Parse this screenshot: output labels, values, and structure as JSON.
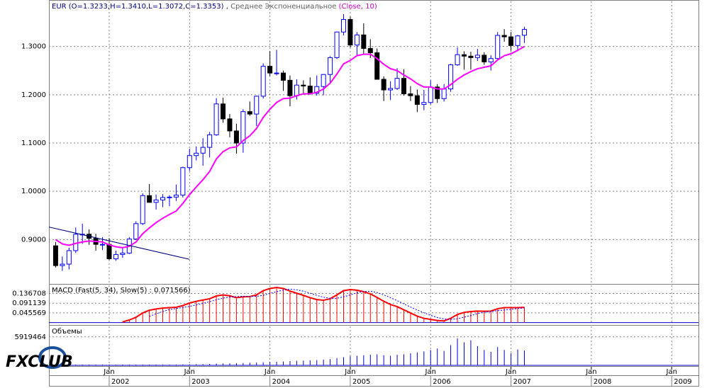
{
  "chart_data": [
    {
      "type": "candlestick",
      "title": "EUR (O=1.3233,H=1.3410,L=1.3072,C=1.3353) ,",
      "indicator_label": "Среднее Экспоненциальное",
      "indicator_params": "(Close, 10)",
      "logo": "FXCLUB",
      "x": [
        "2001-05",
        "2001-06",
        "2001-07",
        "2001-08",
        "2001-09",
        "2001-10",
        "2001-11",
        "2001-12",
        "2002-01",
        "2002-02",
        "2002-03",
        "2002-04",
        "2002-05",
        "2002-06",
        "2002-07",
        "2002-08",
        "2002-09",
        "2002-10",
        "2002-11",
        "2002-12",
        "2003-01",
        "2003-02",
        "2003-03",
        "2003-04",
        "2003-05",
        "2003-06",
        "2003-07",
        "2003-08",
        "2003-09",
        "2003-10",
        "2003-11",
        "2003-12",
        "2004-01",
        "2004-02",
        "2004-03",
        "2004-04",
        "2004-05",
        "2004-06",
        "2004-07",
        "2004-08",
        "2004-09",
        "2004-10",
        "2004-11",
        "2004-12",
        "2005-01",
        "2005-02",
        "2005-03",
        "2005-04",
        "2005-05",
        "2005-06",
        "2005-07",
        "2005-08",
        "2005-09",
        "2005-10",
        "2005-11",
        "2005-12",
        "2006-01",
        "2006-02",
        "2006-03",
        "2006-04",
        "2006-05",
        "2006-06",
        "2006-07",
        "2006-08",
        "2006-09",
        "2006-10",
        "2006-11",
        "2006-12",
        "2007-01",
        "2007-02",
        "2007-03"
      ],
      "open": [
        0.887,
        0.846,
        0.849,
        0.877,
        0.911,
        0.911,
        0.9025,
        0.89,
        0.89,
        0.86,
        0.869,
        0.872,
        0.901,
        0.933,
        0.991,
        0.977,
        0.982,
        0.987,
        0.988,
        0.992,
        1.049,
        1.074,
        1.079,
        1.091,
        1.117,
        1.181,
        1.15,
        1.125,
        1.1,
        1.165,
        1.16,
        1.197,
        1.259,
        1.245,
        1.245,
        1.23,
        1.198,
        1.22,
        1.218,
        1.203,
        1.217,
        1.242,
        1.277,
        1.33,
        1.356,
        1.303,
        1.324,
        1.296,
        1.287,
        1.232,
        1.21,
        1.213,
        1.234,
        1.202,
        1.198,
        1.18,
        1.184,
        1.216,
        1.192,
        1.212,
        1.262,
        1.283,
        1.28,
        1.277,
        1.282,
        1.268,
        1.275,
        1.323,
        1.32,
        1.302,
        1.3233
      ],
      "high": [
        0.895,
        0.865,
        0.883,
        0.925,
        0.933,
        0.921,
        0.912,
        0.905,
        0.903,
        0.877,
        0.884,
        0.905,
        0.938,
        0.996,
        1.015,
        0.993,
        0.994,
        0.992,
        1.014,
        1.051,
        1.088,
        1.093,
        1.11,
        1.123,
        1.193,
        1.194,
        1.16,
        1.14,
        1.17,
        1.186,
        1.198,
        1.265,
        1.29,
        1.293,
        1.25,
        1.24,
        1.232,
        1.23,
        1.236,
        1.24,
        1.243,
        1.28,
        1.331,
        1.367,
        1.362,
        1.33,
        1.348,
        1.315,
        1.296,
        1.238,
        1.228,
        1.255,
        1.253,
        1.218,
        1.211,
        1.21,
        1.23,
        1.222,
        1.222,
        1.264,
        1.298,
        1.29,
        1.289,
        1.295,
        1.288,
        1.282,
        1.33,
        1.336,
        1.33,
        1.324,
        1.341
      ],
      "low": [
        0.842,
        0.835,
        0.838,
        0.872,
        0.891,
        0.889,
        0.877,
        0.878,
        0.858,
        0.856,
        0.862,
        0.87,
        0.899,
        0.93,
        0.977,
        0.962,
        0.967,
        0.969,
        0.98,
        0.987,
        1.042,
        1.064,
        1.053,
        1.07,
        1.115,
        1.142,
        1.112,
        1.078,
        1.08,
        1.156,
        1.135,
        1.192,
        1.239,
        1.24,
        1.208,
        1.176,
        1.19,
        1.2,
        1.2,
        1.198,
        1.199,
        1.224,
        1.274,
        1.323,
        1.298,
        1.282,
        1.283,
        1.276,
        1.232,
        1.187,
        1.189,
        1.21,
        1.198,
        1.187,
        1.164,
        1.168,
        1.18,
        1.183,
        1.186,
        1.206,
        1.26,
        1.252,
        1.252,
        1.27,
        1.262,
        1.25,
        1.271,
        1.31,
        1.291,
        1.29,
        1.3072
      ],
      "close": [
        0.846,
        0.849,
        0.877,
        0.911,
        0.911,
        0.9025,
        0.89,
        0.89,
        0.86,
        0.869,
        0.872,
        0.901,
        0.933,
        0.991,
        0.977,
        0.982,
        0.987,
        0.988,
        0.992,
        1.049,
        1.074,
        1.079,
        1.091,
        1.117,
        1.181,
        1.15,
        1.125,
        1.1,
        1.165,
        1.16,
        1.197,
        1.259,
        1.245,
        1.245,
        1.23,
        1.198,
        1.22,
        1.218,
        1.203,
        1.217,
        1.242,
        1.277,
        1.33,
        1.356,
        1.303,
        1.324,
        1.296,
        1.287,
        1.232,
        1.21,
        1.213,
        1.234,
        1.202,
        1.198,
        1.18,
        1.184,
        1.216,
        1.192,
        1.212,
        1.262,
        1.283,
        1.28,
        1.277,
        1.282,
        1.268,
        1.275,
        1.323,
        1.32,
        1.302,
        1.322,
        1.3353
      ],
      "up_color": "#0000ff",
      "down_color": "#000000",
      "overlay": {
        "color": "#ff00ff",
        "values": [
          0.9,
          0.891,
          0.888,
          0.892,
          0.895,
          0.897,
          0.896,
          0.895,
          0.889,
          0.885,
          0.883,
          0.886,
          0.895,
          0.912,
          0.924,
          0.935,
          0.944,
          0.952,
          0.959,
          0.975,
          0.993,
          1.009,
          1.024,
          1.041,
          1.067,
          1.082,
          1.09,
          1.092,
          1.105,
          1.115,
          1.13,
          1.153,
          1.17,
          1.184,
          1.192,
          1.193,
          1.198,
          1.202,
          1.202,
          1.205,
          1.212,
          1.224,
          1.243,
          1.264,
          1.271,
          1.281,
          1.284,
          1.284,
          1.275,
          1.263,
          1.254,
          1.25,
          1.241,
          1.233,
          1.223,
          1.216,
          1.216,
          1.212,
          1.212,
          1.221,
          1.232,
          1.241,
          1.248,
          1.254,
          1.257,
          1.26,
          1.272,
          1.281,
          1.285,
          1.292,
          1.3
        ]
      },
      "trendline": {
        "color": "#000080",
        "x": [
          "2001-04",
          "2003-01"
        ],
        "values": [
          0.926,
          0.859
        ]
      },
      "xlim": [
        "2001-04",
        "2009-05"
      ],
      "xticks": [
        {
          "value": "2002-01",
          "label": "Jan"
        },
        {
          "value": "2003-01",
          "label": "Jan"
        },
        {
          "value": "2004-01",
          "label": "Jan"
        },
        {
          "value": "2005-01",
          "label": "Jan"
        },
        {
          "value": "2006-01",
          "label": "Jan"
        },
        {
          "value": "2007-01",
          "label": "Jan"
        },
        {
          "value": "2008-01",
          "label": "Jan"
        },
        {
          "value": "2009-01",
          "label": "Jan"
        }
      ],
      "year_labels": [
        {
          "value": "2002-01",
          "label": "2002"
        },
        {
          "value": "2003-01",
          "label": "2003"
        },
        {
          "value": "2004-01",
          "label": "2004"
        },
        {
          "value": "2005-01",
          "label": "2005"
        },
        {
          "value": "2006-01",
          "label": "2006"
        },
        {
          "value": "2007-01",
          "label": "2007"
        },
        {
          "value": "2008-01",
          "label": "2008"
        },
        {
          "value": "2009-01",
          "label": "2009"
        }
      ],
      "ylim": [
        0.8095,
        1.3934
      ],
      "yticks": [
        {
          "value": 0.9,
          "label": "0.9000"
        },
        {
          "value": 1.0,
          "label": "1.0000"
        },
        {
          "value": 1.1,
          "label": "1.1000"
        },
        {
          "value": 1.2,
          "label": "1.2000"
        },
        {
          "value": 1.3,
          "label": "1.3000"
        }
      ],
      "grid": true
    },
    {
      "type": "macd",
      "title": "MACD (Fast(5, 34), Slow(5) : 0.071566)",
      "color": "#ff0000",
      "signal_color": "#0000ff",
      "values": [
        null,
        null,
        null,
        null,
        null,
        null,
        null,
        null,
        null,
        null,
        0.003,
        0.012,
        0.025,
        0.045,
        0.058,
        0.064,
        0.068,
        0.07,
        0.072,
        0.08,
        0.092,
        0.1,
        0.106,
        0.112,
        0.125,
        0.13,
        0.126,
        0.117,
        0.121,
        0.122,
        0.13,
        0.15,
        0.16,
        0.165,
        0.16,
        0.148,
        0.138,
        0.128,
        0.117,
        0.108,
        0.105,
        0.112,
        0.13,
        0.15,
        0.155,
        0.152,
        0.145,
        0.135,
        0.118,
        0.1,
        0.085,
        0.075,
        0.06,
        0.045,
        0.03,
        0.02,
        0.015,
        0.01,
        0.008,
        0.02,
        0.038,
        0.048,
        0.052,
        0.054,
        0.053,
        0.054,
        0.065,
        0.07,
        0.07,
        0.07,
        0.071566
      ],
      "signal": [
        null,
        null,
        null,
        null,
        null,
        null,
        null,
        null,
        null,
        null,
        null,
        null,
        null,
        null,
        0.029,
        0.041,
        0.052,
        0.061,
        0.066,
        0.071,
        0.076,
        0.083,
        0.09,
        0.098,
        0.107,
        0.115,
        0.12,
        0.122,
        0.124,
        0.123,
        0.123,
        0.128,
        0.137,
        0.145,
        0.153,
        0.157,
        0.154,
        0.148,
        0.138,
        0.128,
        0.119,
        0.114,
        0.114,
        0.121,
        0.13,
        0.14,
        0.146,
        0.147,
        0.141,
        0.13,
        0.117,
        0.103,
        0.088,
        0.073,
        0.059,
        0.046,
        0.034,
        0.024,
        0.017,
        0.015,
        0.018,
        0.025,
        0.033,
        0.042,
        0.049,
        0.052,
        0.056,
        0.059,
        0.062,
        0.066,
        0.069
      ],
      "ylim": [
        -0.008,
        0.175
      ],
      "yticks": [
        0.045569,
        0.091139,
        0.136708
      ],
      "grid": true
    },
    {
      "type": "volume",
      "title": "Объемы",
      "color": "#0000cc",
      "values": [
        10000,
        10000,
        10000,
        10000,
        10000,
        10000,
        10000,
        10000,
        20000,
        25000,
        30000,
        40000,
        50000,
        60000,
        80000,
        90000,
        100000,
        120000,
        150000,
        180000,
        200000,
        220000,
        250000,
        300000,
        350000,
        400000,
        420000,
        450000,
        500000,
        550000,
        600000,
        650000,
        700000,
        750000,
        800000,
        900000,
        950000,
        1000000,
        1050000,
        1100000,
        1200000,
        1300000,
        1500000,
        1700000,
        1900000,
        2000000,
        2100000,
        2200000,
        2300000,
        2100000,
        2000000,
        2200000,
        2300000,
        2500000,
        2700000,
        2900000,
        3200000,
        3500000,
        3000000,
        4200000,
        5600000,
        4800000,
        5200000,
        4000000,
        3200000,
        2800000,
        3800000,
        3200000,
        2500000,
        3300000,
        3100000
      ],
      "ylim": [
        0,
        8100000
      ],
      "yticks": [
        5919464
      ],
      "grid": true
    }
  ]
}
